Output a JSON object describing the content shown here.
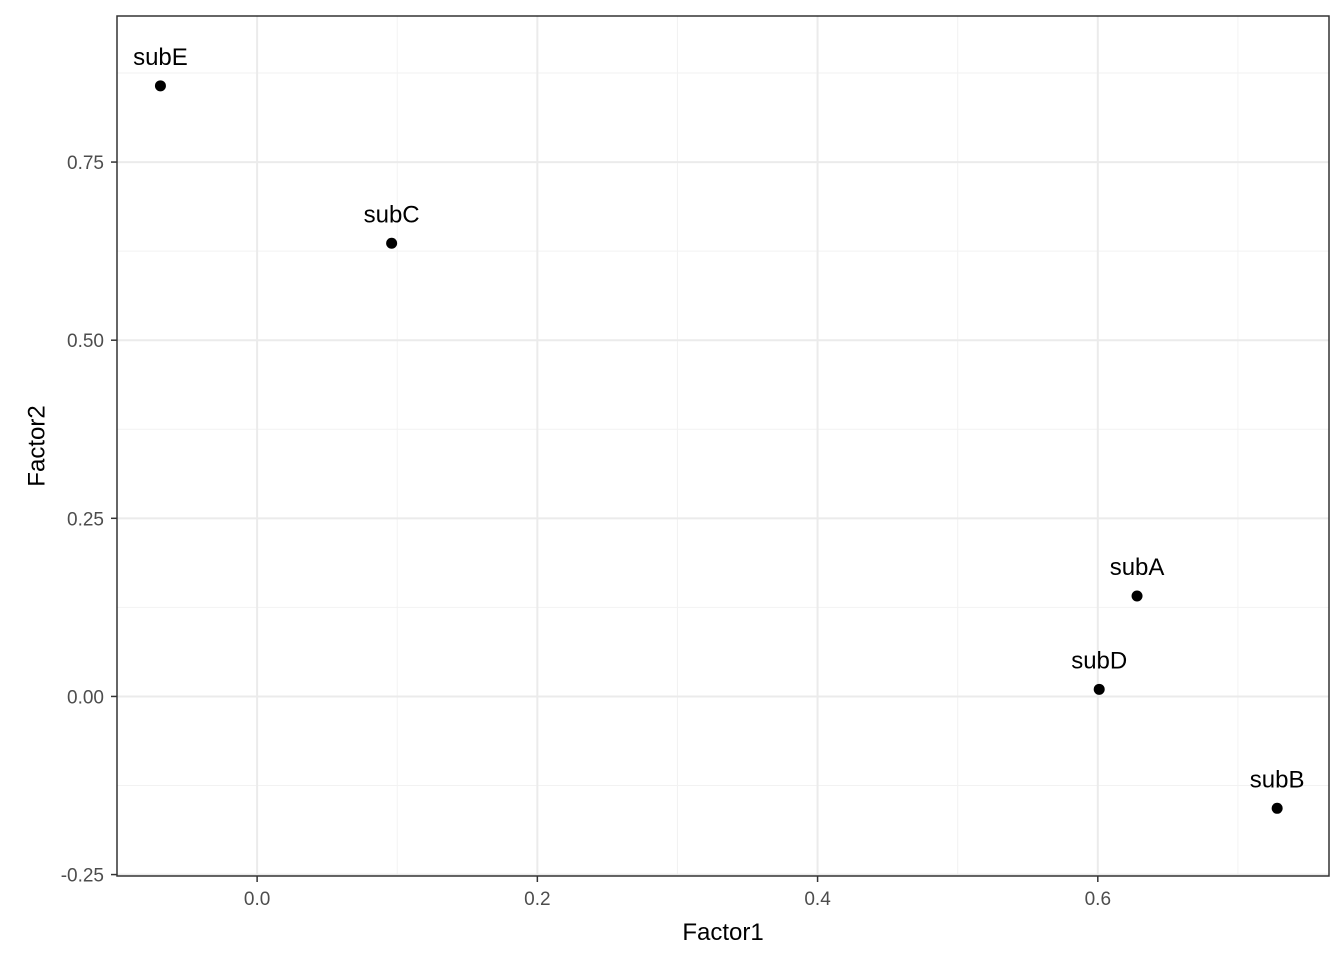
{
  "chart_data": {
    "type": "scatter",
    "title": "",
    "xlabel": "Factor1",
    "ylabel": "Factor2",
    "xlim": [
      -0.1,
      0.765
    ],
    "ylim": [
      -0.252,
      0.955
    ],
    "x_ticks": [
      "0.0",
      "0.2",
      "0.4",
      "0.6"
    ],
    "x_tick_values": [
      0.0,
      0.2,
      0.4,
      0.6
    ],
    "y_ticks": [
      "-0.25",
      "0.00",
      "0.25",
      "0.50",
      "0.75"
    ],
    "y_tick_values": [
      -0.25,
      0.0,
      0.25,
      0.5,
      0.75
    ],
    "grid": true,
    "legend": "none",
    "points": [
      {
        "label": "subA",
        "x": 0.628,
        "y": 0.141
      },
      {
        "label": "subB",
        "x": 0.728,
        "y": -0.157
      },
      {
        "label": "subC",
        "x": 0.096,
        "y": 0.636
      },
      {
        "label": "subD",
        "x": 0.601,
        "y": 0.01
      },
      {
        "label": "subE",
        "x": -0.069,
        "y": 0.857
      }
    ],
    "colors": {
      "point": "#000000",
      "panel_border": "#333333",
      "grid_major": "#ebebeb",
      "grid_minor": "#f2f2f2"
    }
  }
}
